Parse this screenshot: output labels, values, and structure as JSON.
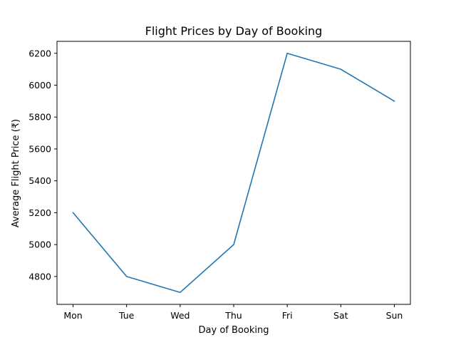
{
  "chart_data": {
    "type": "line",
    "title": "Flight Prices by Day of Booking",
    "xlabel": "Day of Booking",
    "ylabel": "Average Flight Price (₹)",
    "categories": [
      "Mon",
      "Tue",
      "Wed",
      "Thu",
      "Fri",
      "Sat",
      "Sun"
    ],
    "series": [
      {
        "values": [
          5200,
          4800,
          4700,
          5000,
          6200,
          6100,
          5900
        ],
        "color": "#1f77b4"
      }
    ],
    "yticks": [
      4800,
      5000,
      5200,
      5400,
      5600,
      5800,
      6000,
      6200
    ],
    "ylim": [
      4625,
      6275
    ],
    "grid": false,
    "legend": "none"
  }
}
